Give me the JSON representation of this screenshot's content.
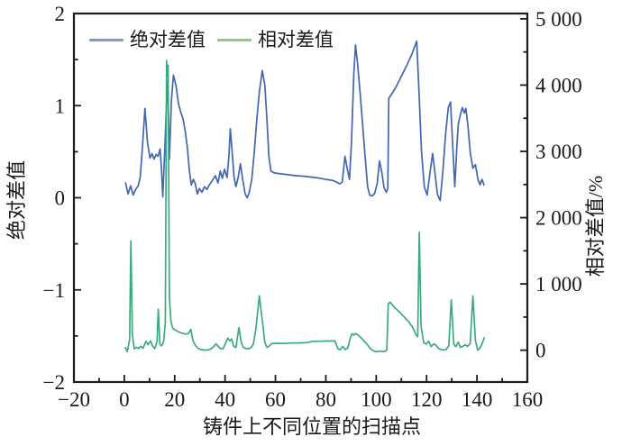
{
  "figure": {
    "background": "#ffffff",
    "axis_color": "#1c1c1c",
    "text_color": "#1a1a1a"
  },
  "legend": {
    "items": [
      {
        "label": "绝对差值",
        "swatch_color": "#8298cc"
      },
      {
        "label": "相对差值",
        "swatch_color": "#92c981"
      }
    ]
  },
  "chart_data": {
    "type": "line",
    "title": "",
    "xlabel": "铸件上不同位置的扫描点",
    "ylabel_left": "绝对差值",
    "ylabel_right": "相对差值/%",
    "xlim": [
      -20,
      160
    ],
    "ylim_left": [
      -2,
      2
    ],
    "ylim_right": [
      -480,
      5080
    ],
    "grid": false,
    "legend_position": "top-center",
    "xticks": {
      "values": [
        -20,
        0,
        20,
        40,
        60,
        80,
        100,
        120,
        140,
        160
      ],
      "labels": [
        "−20",
        "0",
        "20",
        "40",
        "60",
        "80",
        "100",
        "120",
        "140",
        "160"
      ],
      "minor_step": 10
    },
    "yticks_left": {
      "values": [
        2,
        1,
        0,
        -1,
        -2
      ],
      "labels": [
        "2",
        "1",
        "0",
        "−1",
        "−2"
      ],
      "minor_step": 0.5
    },
    "yticks_right": {
      "values": [
        5000,
        4000,
        3000,
        2000,
        1000,
        0
      ],
      "labels": [
        "5 000",
        "4 000",
        "3 000",
        "2 000",
        "1 000",
        "0"
      ],
      "minor_step": 500
    },
    "series": [
      {
        "name": "绝对差值",
        "axis": "left",
        "color": "#4267b0",
        "points": [
          [
            0.5,
            0.16
          ],
          [
            1.5,
            0.04
          ],
          [
            2.5,
            0.13
          ],
          [
            3.5,
            0.03
          ],
          [
            4.5,
            0.09
          ],
          [
            5.5,
            0.13
          ],
          [
            6.3,
            0.22
          ],
          [
            7.2,
            0.55
          ],
          [
            8.2,
            0.97
          ],
          [
            9.2,
            0.6
          ],
          [
            10.2,
            0.43
          ],
          [
            11,
            0.48
          ],
          [
            11.8,
            0.42
          ],
          [
            12.6,
            0.47
          ],
          [
            13.4,
            0.45
          ],
          [
            14.2,
            0.53
          ],
          [
            14.8,
            0.3
          ],
          [
            15.3,
            0.01
          ],
          [
            16.1,
            0.55
          ],
          [
            16.7,
            1.0
          ],
          [
            17.2,
            1.27
          ],
          [
            17.9,
            0.42
          ],
          [
            18.7,
            1.05
          ],
          [
            19.5,
            1.33
          ],
          [
            20.5,
            1.22
          ],
          [
            21.5,
            1.02
          ],
          [
            22.5,
            0.92
          ],
          [
            23.3,
            0.86
          ],
          [
            24.2,
            0.72
          ],
          [
            25,
            0.55
          ],
          [
            25.8,
            0.3
          ],
          [
            26.6,
            0.14
          ],
          [
            27.4,
            0.2
          ],
          [
            28.2,
            0.15
          ],
          [
            29,
            0.04
          ],
          [
            29.8,
            0.1
          ],
          [
            30.8,
            0.06
          ],
          [
            31.8,
            0.12
          ],
          [
            32.8,
            0.09
          ],
          [
            33.8,
            0.14
          ],
          [
            35,
            0.19
          ],
          [
            36.2,
            0.24
          ],
          [
            37.2,
            0.16
          ],
          [
            38.1,
            0.29
          ],
          [
            38.9,
            0.21
          ],
          [
            39.8,
            0.31
          ],
          [
            40.8,
            0.22
          ],
          [
            41.5,
            0.45
          ],
          [
            42.1,
            0.75
          ],
          [
            42.8,
            0.5
          ],
          [
            43.6,
            0.22
          ],
          [
            44.3,
            0.12
          ],
          [
            45.2,
            0.22
          ],
          [
            46.1,
            0.37
          ],
          [
            47,
            0.2
          ],
          [
            48,
            0.04
          ],
          [
            48.8,
            0.0
          ],
          [
            49.6,
            0.06
          ],
          [
            50.6,
            0.2
          ],
          [
            51.6,
            0.5
          ],
          [
            52.6,
            0.85
          ],
          [
            53.6,
            1.15
          ],
          [
            54.8,
            1.38
          ],
          [
            55.8,
            1.22
          ],
          [
            56.6,
            0.85
          ],
          [
            57.4,
            0.45
          ],
          [
            58.2,
            0.29
          ],
          [
            59.5,
            0.27
          ],
          [
            62,
            0.26
          ],
          [
            65,
            0.25
          ],
          [
            68,
            0.24
          ],
          [
            71,
            0.235
          ],
          [
            74,
            0.225
          ],
          [
            77,
            0.215
          ],
          [
            80,
            0.2
          ],
          [
            82.5,
            0.19
          ],
          [
            84.3,
            0.17
          ],
          [
            85.5,
            0.15
          ],
          [
            86.5,
            0.17
          ],
          [
            87.6,
            0.45
          ],
          [
            88.6,
            0.3
          ],
          [
            89.4,
            0.2
          ],
          [
            90.2,
            0.6
          ],
          [
            91.1,
            1.35
          ],
          [
            91.8,
            1.66
          ],
          [
            92.6,
            1.45
          ],
          [
            93.6,
            1.15
          ],
          [
            94.6,
            0.8
          ],
          [
            95.6,
            0.45
          ],
          [
            96.6,
            0.12
          ],
          [
            97.4,
            0.03
          ],
          [
            98.4,
            0.02
          ],
          [
            99.4,
            0.05
          ],
          [
            100.4,
            0.16
          ],
          [
            101.3,
            0.4
          ],
          [
            102.2,
            0.28
          ],
          [
            103.1,
            0.11
          ],
          [
            104,
            0.06
          ],
          [
            104.6,
            0.1
          ],
          [
            105,
            1.08
          ],
          [
            106.2,
            1.13
          ],
          [
            108,
            1.21
          ],
          [
            110,
            1.32
          ],
          [
            112,
            1.43
          ],
          [
            114,
            1.55
          ],
          [
            115.4,
            1.65
          ],
          [
            116.1,
            1.7
          ],
          [
            117,
            1.15
          ],
          [
            118,
            0.5
          ],
          [
            119.1,
            0.12
          ],
          [
            120.2,
            0.03
          ],
          [
            121.4,
            0.28
          ],
          [
            122.4,
            0.48
          ],
          [
            123.3,
            0.28
          ],
          [
            124.3,
            0.04
          ],
          [
            125.4,
            -0.03
          ],
          [
            126.5,
            0.3
          ],
          [
            127.5,
            0.68
          ],
          [
            128.6,
            0.98
          ],
          [
            129.5,
            1.04
          ],
          [
            130.4,
            0.55
          ],
          [
            131.2,
            0.12
          ],
          [
            132,
            0.55
          ],
          [
            132.6,
            0.8
          ],
          [
            133.4,
            0.9
          ],
          [
            134.2,
            0.98
          ],
          [
            135,
            0.92
          ],
          [
            135.6,
            0.97
          ],
          [
            136.4,
            0.78
          ],
          [
            137.4,
            0.48
          ],
          [
            138.4,
            0.32
          ],
          [
            139.4,
            0.36
          ],
          [
            140.4,
            0.2
          ],
          [
            141.2,
            0.14
          ],
          [
            142,
            0.2
          ],
          [
            142.8,
            0.14
          ]
        ]
      },
      {
        "name": "相对差值",
        "axis": "right",
        "color": "#3bab7d",
        "points": [
          [
            0.4,
            40
          ],
          [
            1.2,
            -20
          ],
          [
            2.1,
            160
          ],
          [
            2.6,
            1650
          ],
          [
            3.2,
            250
          ],
          [
            3.9,
            20
          ],
          [
            4.8,
            45
          ],
          [
            5.6,
            25
          ],
          [
            6.6,
            60
          ],
          [
            7.4,
            30
          ],
          [
            8.6,
            135
          ],
          [
            9.4,
            85
          ],
          [
            10.4,
            140
          ],
          [
            11.3,
            60
          ],
          [
            12.1,
            25
          ],
          [
            13,
            130
          ],
          [
            13.5,
            620
          ],
          [
            14.1,
            95
          ],
          [
            14.8,
            65
          ],
          [
            15.6,
            130
          ],
          [
            16.3,
            420
          ],
          [
            16.8,
            4370
          ],
          [
            17.1,
            4130
          ],
          [
            17.4,
            4300
          ],
          [
            17.9,
            800
          ],
          [
            18.5,
            430
          ],
          [
            19.3,
            330
          ],
          [
            20.2,
            305
          ],
          [
            21.2,
            285
          ],
          [
            22.2,
            265
          ],
          [
            23.2,
            255
          ],
          [
            24.2,
            245
          ],
          [
            25.4,
            250
          ],
          [
            26.4,
            315
          ],
          [
            27.2,
            150
          ],
          [
            28.2,
            75
          ],
          [
            29.2,
            30
          ],
          [
            30.4,
            10
          ],
          [
            31.6,
            2
          ],
          [
            33,
            2
          ],
          [
            34.2,
            15
          ],
          [
            35.6,
            60
          ],
          [
            36.4,
            96
          ],
          [
            37.3,
            55
          ],
          [
            38.2,
            25
          ],
          [
            39.2,
            20
          ],
          [
            40.4,
            125
          ],
          [
            41.1,
            182
          ],
          [
            41.9,
            140
          ],
          [
            42.6,
            170
          ],
          [
            43.4,
            60
          ],
          [
            44.3,
            40
          ],
          [
            45.5,
            342
          ],
          [
            46.4,
            120
          ],
          [
            47.2,
            45
          ],
          [
            48.2,
            25
          ],
          [
            49.2,
            22
          ],
          [
            50.2,
            35
          ],
          [
            51.2,
            90
          ],
          [
            52.2,
            320
          ],
          [
            53.6,
            820
          ],
          [
            54.7,
            480
          ],
          [
            55.8,
            115
          ],
          [
            56.7,
            42
          ],
          [
            57.6,
            65
          ],
          [
            58.6,
            100
          ],
          [
            60.5,
            105
          ],
          [
            63,
            102
          ],
          [
            66,
            108
          ],
          [
            69,
            110
          ],
          [
            72,
            113
          ],
          [
            75,
            135
          ],
          [
            78,
            136
          ],
          [
            81,
            138
          ],
          [
            83.6,
            140
          ],
          [
            84.9,
            18
          ],
          [
            85.7,
            5
          ],
          [
            86.7,
            60
          ],
          [
            87.7,
            8
          ],
          [
            88.7,
            35
          ],
          [
            89.7,
            185
          ],
          [
            90.4,
            248
          ],
          [
            91.1,
            228
          ],
          [
            91.9,
            252
          ],
          [
            92.7,
            232
          ],
          [
            93.7,
            198
          ],
          [
            94.7,
            158
          ],
          [
            95.9,
            112
          ],
          [
            97,
            58
          ],
          [
            98.1,
            8
          ],
          [
            99.3,
            -15
          ],
          [
            100.5,
            -22
          ],
          [
            101.8,
            -14
          ],
          [
            103.2,
            -22
          ],
          [
            104.2,
            0
          ],
          [
            104.8,
            700
          ],
          [
            105.6,
            724
          ],
          [
            107,
            655
          ],
          [
            109,
            585
          ],
          [
            111,
            505
          ],
          [
            113,
            425
          ],
          [
            114.6,
            335
          ],
          [
            115.9,
            225
          ],
          [
            116.5,
            205
          ],
          [
            117.1,
            1780
          ],
          [
            117.8,
            360
          ],
          [
            118.9,
            112
          ],
          [
            119.9,
            95
          ],
          [
            120.8,
            136
          ],
          [
            121.8,
            54
          ],
          [
            122.8,
            95
          ],
          [
            123.7,
            78
          ],
          [
            124.7,
            28
          ],
          [
            125.8,
            8
          ],
          [
            126.8,
            4
          ],
          [
            127.8,
            12
          ],
          [
            128.8,
            65
          ],
          [
            129.8,
            760
          ],
          [
            130.8,
            95
          ],
          [
            131.6,
            54
          ],
          [
            132.6,
            122
          ],
          [
            133.4,
            40
          ],
          [
            134.3,
            58
          ],
          [
            135.3,
            80
          ],
          [
            136.3,
            58
          ],
          [
            137.3,
            100
          ],
          [
            138.4,
            820
          ],
          [
            139.4,
            145
          ],
          [
            140.3,
            0
          ],
          [
            141.1,
            28
          ],
          [
            142,
            95
          ],
          [
            142.9,
            188
          ]
        ]
      }
    ]
  }
}
